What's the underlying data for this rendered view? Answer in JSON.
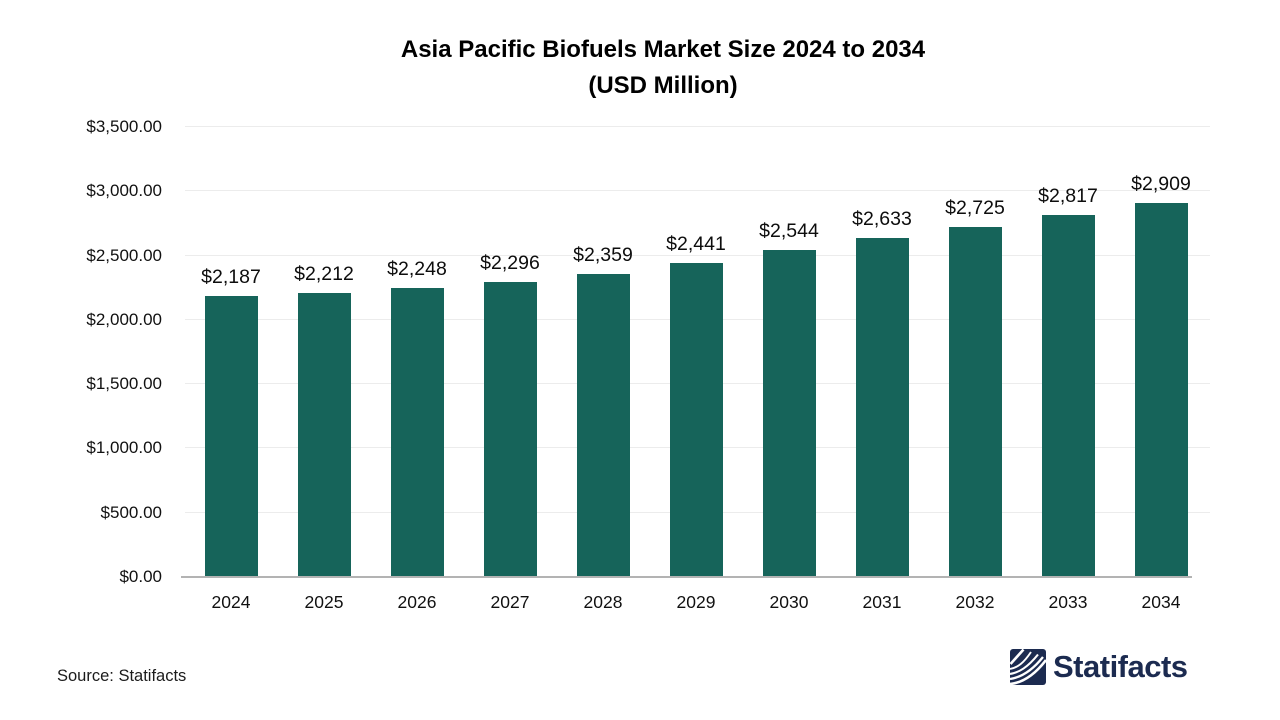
{
  "title": {
    "line1": "Asia Pacific Biofuels Market Size 2024 to 2034",
    "line2": "(USD Million)"
  },
  "chart_data": {
    "type": "bar",
    "title": "Asia Pacific Biofuels Market Size 2024 to 2034 (USD Million)",
    "categories": [
      "2024",
      "2025",
      "2026",
      "2027",
      "2028",
      "2029",
      "2030",
      "2031",
      "2032",
      "2033",
      "2034"
    ],
    "values": [
      2187,
      2212,
      2248,
      2296,
      2359,
      2441,
      2544,
      2633,
      2725,
      2817,
      2909
    ],
    "value_labels": [
      "$2,187",
      "$2,212",
      "$2,248",
      "$2,296",
      "$2,359",
      "$2,441",
      "$2,544",
      "$2,633",
      "$2,725",
      "$2,817",
      "$2,909"
    ],
    "xlabel": "",
    "ylabel": "",
    "ylim": [
      0,
      3500
    ],
    "ytick_step": 500,
    "ytick_labels": [
      "$0.00",
      "$500.00",
      "$1,000.00",
      "$1,500.00",
      "$2,000.00",
      "$2,500.00",
      "$3,000.00",
      "$3,500.00"
    ],
    "grid": true,
    "legend": false,
    "bar_color": "#16645A"
  },
  "footer": {
    "source": "Source: Statifacts",
    "brand": "Statifacts"
  },
  "colors": {
    "bar": "#16645A",
    "gridline": "#ECECEC",
    "axis_line": "#B3B3B3",
    "text": "#111111",
    "brand_navy": "#1C2B50",
    "background": "#FFFFFF"
  }
}
